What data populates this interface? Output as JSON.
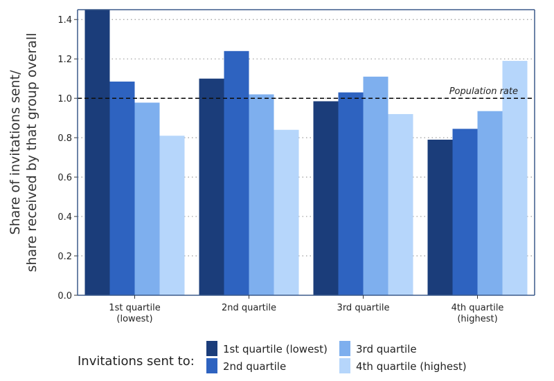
{
  "chart_data": {
    "type": "bar",
    "categories": [
      [
        "1st quartile",
        "(lowest)"
      ],
      [
        "2nd quartile"
      ],
      [
        "3rd quartile"
      ],
      [
        "4th quartile",
        "(highest)"
      ]
    ],
    "series": [
      {
        "name": "1st quartile (lowest)",
        "color": "#1b3d7a",
        "values": [
          1.45,
          1.1,
          0.985,
          0.79
        ]
      },
      {
        "name": "2nd quartile",
        "color": "#2e63c0",
        "values": [
          1.085,
          1.24,
          1.03,
          0.845
        ]
      },
      {
        "name": "3rd quartile",
        "color": "#7eafee",
        "values": [
          0.978,
          1.02,
          1.11,
          0.935
        ]
      },
      {
        "name": "4th quartile (highest)",
        "color": "#b6d6fb",
        "values": [
          0.81,
          0.84,
          0.92,
          1.19
        ]
      }
    ],
    "ylim": [
      0,
      1.45
    ],
    "yticks": [
      "0.0",
      "0.2",
      "0.4",
      "0.6",
      "0.8",
      "1.0",
      "1.2",
      "1.4"
    ],
    "ylabel": [
      "Share of invitations sent/",
      "share received by that group overall"
    ],
    "reference_line": {
      "value": 1.0,
      "label": "Population rate"
    },
    "grid": "horizontal dotted",
    "legend": {
      "title": "Invitations sent to:",
      "placement": "bottom"
    }
  }
}
